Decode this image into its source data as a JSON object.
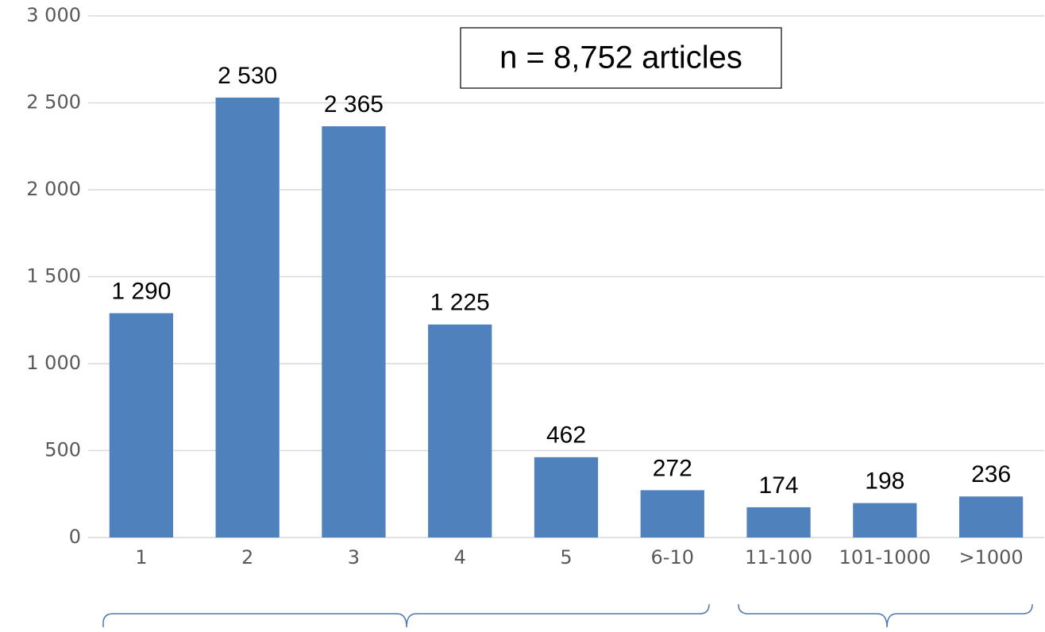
{
  "chart_data": {
    "type": "bar",
    "annotation": "n = 8,752 articles",
    "categories": [
      "1",
      "2",
      "3",
      "4",
      "5",
      "6-10",
      "11-100",
      "101-1000",
      ">1000"
    ],
    "values": [
      1290,
      2530,
      2365,
      1225,
      462,
      272,
      174,
      198,
      236
    ],
    "value_labels": [
      "1 290",
      "2 530",
      "2 365",
      "1 225",
      "462",
      "272",
      "174",
      "198",
      "236"
    ],
    "color": "#4f81bd",
    "ylim": [
      0,
      3000
    ],
    "yticks": [
      0,
      {
        "value": 500,
        "label": "500"
      },
      {
        "value": 1000,
        "label": "1 000"
      },
      {
        "value": 1500,
        "label": "1 500"
      },
      {
        "value": 2000,
        "label": "2 000"
      },
      {
        "value": 2500,
        "label": "2 500"
      },
      {
        "value": 3000,
        "label": "3 000"
      }
    ],
    "grid": true
  }
}
